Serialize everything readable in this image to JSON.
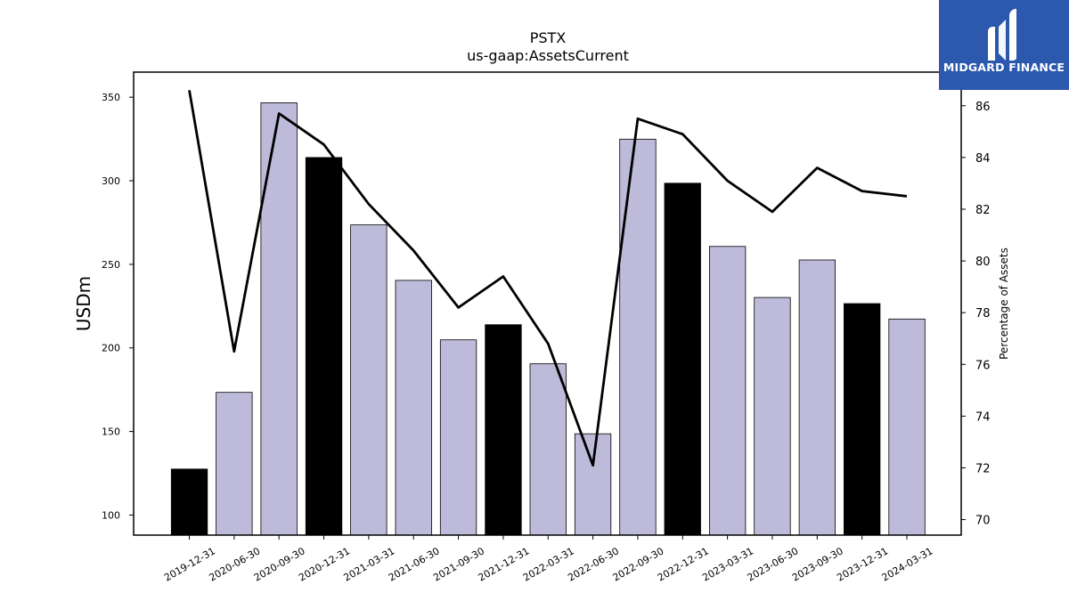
{
  "chart_data": {
    "type": "bar",
    "title": "PSTX",
    "subtitle": "us-gaap:AssetsCurrent",
    "ylabel": "USDm",
    "y2label": "Percentage of Assets",
    "ylim": [
      88,
      365
    ],
    "y2lim": [
      69.4,
      87.3
    ],
    "yticks": [
      100,
      150,
      200,
      250,
      300,
      350
    ],
    "y2ticks": [
      70,
      72,
      74,
      76,
      78,
      80,
      82,
      84,
      86
    ],
    "categories": [
      "2019-12-31",
      "2020-06-30",
      "2020-09-30",
      "2020-12-31",
      "2021-03-31",
      "2021-06-30",
      "2021-09-30",
      "2021-12-31",
      "2022-03-31",
      "2022-06-30",
      "2022-09-30",
      "2022-12-31",
      "2023-03-31",
      "2023-06-30",
      "2023-09-30",
      "2023-12-31",
      "2024-03-31"
    ],
    "series": [
      {
        "values": [
          127.5,
          173.4,
          346.7,
          313.9,
          273.6,
          240.4,
          204.8,
          213.9,
          190.5,
          148.6,
          324.9,
          298.5,
          260.7,
          230.2,
          252.6,
          226.5,
          217.3
        ]
      },
      {
        "type": "line",
        "axis": "right",
        "values": [
          86.6,
          76.5,
          85.7,
          84.5,
          82.2,
          80.4,
          78.2,
          79.4,
          76.8,
          72.1,
          85.5,
          84.9,
          83.1,
          81.9,
          83.6,
          82.7,
          82.5
        ]
      }
    ],
    "bar_colors": [
      "#000000",
      "#bdbbd9",
      "#bdbbd9",
      "#000000",
      "#bdbbd9",
      "#bdbbd9",
      "#bdbbd9",
      "#000000",
      "#bdbbd9",
      "#bdbbd9",
      "#bdbbd9",
      "#000000",
      "#bdbbd9",
      "#bdbbd9",
      "#bdbbd9",
      "#000000",
      "#bdbbd9"
    ],
    "line_color": "#000000",
    "legend": false,
    "grid": false
  },
  "logo": {
    "text": "MIDGARD FINANCE",
    "background": "#2c58ad"
  }
}
